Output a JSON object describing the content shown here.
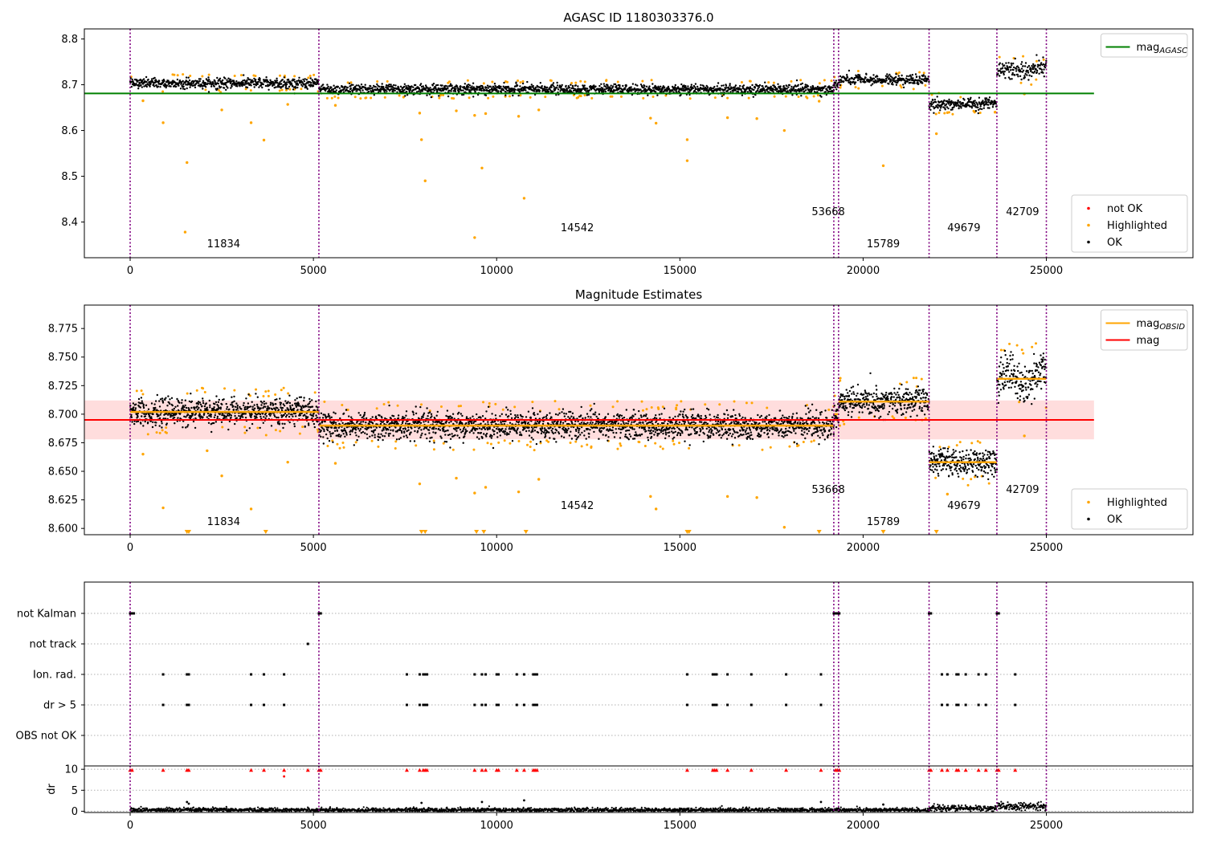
{
  "colors": {
    "ok": "#000000",
    "highlighted": "#ffa500",
    "not_ok": "#ff0000",
    "agasc_mag": "#008000",
    "mag": "#ff0000",
    "obsid_mag": "#ffa500",
    "band": "#ffdddd",
    "obs_boundary": "#800080",
    "grid": "#b0b0b0"
  },
  "chart_data": [
    {
      "type": "scatter",
      "title": "AGASC ID 1180303376.0",
      "xlim": [
        -1250,
        29000
      ],
      "ylim": [
        8.322,
        8.822
      ],
      "x_ticks": [
        0,
        5000,
        10000,
        15000,
        20000,
        25000
      ],
      "x_tick_labels": [
        "0",
        "5000",
        "10000",
        "15000",
        "20000",
        "25000"
      ],
      "y_ticks": [
        8.4,
        8.5,
        8.6,
        8.7,
        8.8
      ],
      "y_tick_labels": [
        "8.4",
        "8.5",
        "8.6",
        "8.7",
        "8.8"
      ],
      "grid": false,
      "obs_boundaries": [
        0,
        5150,
        19200,
        19330,
        21800,
        23650,
        25000
      ],
      "observations": [
        {
          "obsid": "11834",
          "x0": 0,
          "x1": 5150,
          "level": 8.703,
          "label_x": 2550,
          "label_y": 8.345
        },
        {
          "obsid": "14542",
          "x0": 5150,
          "x1": 19200,
          "level": 8.69,
          "label_x": 12200,
          "label_y": 8.38
        },
        {
          "obsid": "53668",
          "x0": 19200,
          "x1": 19330,
          "level": 8.7,
          "label_x": 19050,
          "label_y": 8.415
        },
        {
          "obsid": "15789",
          "x0": 19330,
          "x1": 21800,
          "level": 8.711,
          "label_x": 20550,
          "label_y": 8.345
        },
        {
          "obsid": "49679",
          "x0": 21800,
          "x1": 23650,
          "level": 8.658,
          "label_x": 22750,
          "label_y": 8.38
        },
        {
          "obsid": "42709",
          "x0": 23650,
          "x1": 25000,
          "level": 8.731,
          "label_x": 24350,
          "label_y": 8.415
        }
      ],
      "reference_lines": [
        {
          "name": "mag$_{AGASC}$",
          "y": 8.681,
          "x": [
            -1250,
            26300
          ]
        }
      ],
      "highlighted_outliers": [
        {
          "x": 350,
          "y": 8.665
        },
        {
          "x": 900,
          "y": 8.617
        },
        {
          "x": 1550,
          "y": 8.53
        },
        {
          "x": 1500,
          "y": 8.378
        },
        {
          "x": 2500,
          "y": 8.645
        },
        {
          "x": 3300,
          "y": 8.617
        },
        {
          "x": 3650,
          "y": 8.579
        },
        {
          "x": 4300,
          "y": 8.657
        },
        {
          "x": 5600,
          "y": 8.655
        },
        {
          "x": 7900,
          "y": 8.638
        },
        {
          "x": 7950,
          "y": 8.58
        },
        {
          "x": 8050,
          "y": 8.49
        },
        {
          "x": 8900,
          "y": 8.643
        },
        {
          "x": 9400,
          "y": 8.633
        },
        {
          "x": 9400,
          "y": 8.366
        },
        {
          "x": 9600,
          "y": 8.518
        },
        {
          "x": 9700,
          "y": 8.637
        },
        {
          "x": 10600,
          "y": 8.631
        },
        {
          "x": 10750,
          "y": 8.452
        },
        {
          "x": 11150,
          "y": 8.645
        },
        {
          "x": 14200,
          "y": 8.627
        },
        {
          "x": 14350,
          "y": 8.616
        },
        {
          "x": 15200,
          "y": 8.58
        },
        {
          "x": 15200,
          "y": 8.534
        },
        {
          "x": 16300,
          "y": 8.628
        },
        {
          "x": 17100,
          "y": 8.626
        },
        {
          "x": 17850,
          "y": 8.6
        },
        {
          "x": 18800,
          "y": 8.664
        },
        {
          "x": 20550,
          "y": 8.523
        },
        {
          "x": 22000,
          "y": 8.593
        },
        {
          "x": 22300,
          "y": 8.639
        },
        {
          "x": 23600,
          "y": 8.64
        },
        {
          "x": 24400,
          "y": 8.68
        }
      ],
      "legends": [
        {
          "location": "upper right",
          "entries": [
            {
              "kind": "line",
              "color": "#008000",
              "label": "mag",
              "sub": "AGASC"
            }
          ]
        },
        {
          "location": "lower right",
          "entries": [
            {
              "kind": "marker",
              "color": "#ff0000",
              "label": "not OK"
            },
            {
              "kind": "marker",
              "color": "#ffa500",
              "label": "Highlighted"
            },
            {
              "kind": "marker",
              "color": "#000000",
              "label": "OK"
            }
          ]
        }
      ]
    },
    {
      "type": "scatter",
      "title": "Magnitude Estimates",
      "xlim": [
        -1250,
        29000
      ],
      "ylim": [
        8.5945,
        8.7955
      ],
      "x_ticks": [
        0,
        5000,
        10000,
        15000,
        20000,
        25000
      ],
      "x_tick_labels": [
        "0",
        "5000",
        "10000",
        "15000",
        "20000",
        "25000"
      ],
      "y_ticks": [
        8.6,
        8.625,
        8.65,
        8.675,
        8.7,
        8.725,
        8.75,
        8.775
      ],
      "y_tick_labels": [
        "8.600",
        "8.625",
        "8.650",
        "8.675",
        "8.700",
        "8.725",
        "8.750",
        "8.775"
      ],
      "grid": false,
      "mag": 8.695,
      "mag_band": [
        8.678,
        8.712
      ],
      "observations": [
        {
          "obsid": "11834",
          "x0": 0,
          "x1": 5150,
          "level": 8.702,
          "label_x": 2550,
          "label_y": 8.603
        },
        {
          "obsid": "14542",
          "x0": 5150,
          "x1": 19200,
          "level": 8.69,
          "label_x": 12200,
          "label_y": 8.617
        },
        {
          "obsid": "53668",
          "x0": 19200,
          "x1": 19330,
          "level": 8.7,
          "label_x": 19050,
          "label_y": 8.631
        },
        {
          "obsid": "15789",
          "x0": 19330,
          "x1": 21800,
          "level": 8.711,
          "label_x": 20550,
          "label_y": 8.603
        },
        {
          "obsid": "49679",
          "x0": 21800,
          "x1": 23650,
          "level": 8.658,
          "label_x": 22750,
          "label_y": 8.617
        },
        {
          "obsid": "42709",
          "x0": 23650,
          "x1": 25000,
          "level": 8.731,
          "label_x": 24350,
          "label_y": 8.631
        }
      ],
      "highlighted_outliers": [
        {
          "x": 350,
          "y": 8.665
        },
        {
          "x": 900,
          "y": 8.618
        },
        {
          "x": 2100,
          "y": 8.668
        },
        {
          "x": 2500,
          "y": 8.646
        },
        {
          "x": 3300,
          "y": 8.617
        },
        {
          "x": 4300,
          "y": 8.658
        },
        {
          "x": 5600,
          "y": 8.657
        },
        {
          "x": 7900,
          "y": 8.639
        },
        {
          "x": 8900,
          "y": 8.644
        },
        {
          "x": 9400,
          "y": 8.631
        },
        {
          "x": 9700,
          "y": 8.636
        },
        {
          "x": 10600,
          "y": 8.632
        },
        {
          "x": 11150,
          "y": 8.643
        },
        {
          "x": 14200,
          "y": 8.628
        },
        {
          "x": 14350,
          "y": 8.617
        },
        {
          "x": 16300,
          "y": 8.628
        },
        {
          "x": 17100,
          "y": 8.627
        },
        {
          "x": 17850,
          "y": 8.601
        },
        {
          "x": 22300,
          "y": 8.63
        },
        {
          "x": 24400,
          "y": 8.681
        }
      ],
      "clipped_below_x": [
        1550,
        1600,
        3700,
        7950,
        8050,
        9450,
        9650,
        10800,
        15200,
        15250,
        18800,
        20550,
        22000
      ],
      "legends": [
        {
          "location": "upper right",
          "entries": [
            {
              "kind": "line",
              "color": "#ffa500",
              "label": "mag",
              "sub": "OBSID"
            },
            {
              "kind": "line",
              "color": "#ff0000",
              "label": "mag"
            }
          ]
        },
        {
          "location": "lower right",
          "entries": [
            {
              "kind": "marker",
              "color": "#ffa500",
              "label": "Highlighted"
            },
            {
              "kind": "marker",
              "color": "#000000",
              "label": "OK"
            }
          ]
        }
      ]
    },
    {
      "type": "scatter",
      "title": "",
      "xlim": [
        -1250,
        29000
      ],
      "x_ticks": [
        0,
        5000,
        10000,
        15000,
        20000,
        25000
      ],
      "x_tick_labels": [
        "0",
        "5000",
        "10000",
        "15000",
        "20000",
        "25000"
      ],
      "flag_rows": [
        "not Kalman",
        "not track",
        "Ion. rad.",
        "dr > 5",
        "OBS not OK"
      ],
      "flags": {
        "not Kalman": [
          0,
          50,
          100,
          5150,
          5200,
          19200,
          19250,
          19300,
          19350,
          21800,
          21850,
          23650,
          23700
        ],
        "not track": [
          4850
        ],
        "Ion. rad.": [
          900,
          1550,
          1600,
          3300,
          3650,
          4200,
          7550,
          7900,
          8000,
          8050,
          8100,
          9400,
          9600,
          9700,
          10000,
          10050,
          10550,
          10750,
          11000,
          11050,
          11100,
          15200,
          15900,
          15950,
          16000,
          16300,
          16950,
          17900,
          18850,
          22150,
          22300,
          22550,
          22600,
          22800,
          23150,
          23350,
          24150
        ],
        "dr > 5": [
          900,
          1550,
          1600,
          3300,
          3650,
          4200,
          7550,
          7900,
          8000,
          8050,
          8100,
          9400,
          9600,
          9700,
          10000,
          10050,
          10550,
          10750,
          11000,
          11050,
          11100,
          15200,
          15900,
          15950,
          16000,
          16300,
          16950,
          17900,
          18850,
          22150,
          22300,
          22550,
          22600,
          22800,
          23150,
          23350,
          24150
        ],
        "OBS not OK": []
      },
      "ylabel": "dr",
      "dr_ylim": [
        -0.3,
        10.8
      ],
      "dr_y_ticks": [
        0,
        5,
        10
      ],
      "dr_y_tick_labels": [
        "0",
        "5",
        "10"
      ],
      "dr_clipped_x": [
        0,
        50,
        900,
        1550,
        1600,
        3300,
        3650,
        4200,
        4850,
        5150,
        5200,
        7550,
        7900,
        8000,
        8050,
        8100,
        9400,
        9600,
        9700,
        10000,
        10050,
        10550,
        10750,
        11000,
        11050,
        11100,
        15200,
        15900,
        15950,
        16000,
        16300,
        16950,
        17900,
        18850,
        19250,
        19300,
        19350,
        21800,
        21850,
        22150,
        22300,
        22550,
        22600,
        22800,
        23150,
        23350,
        23650,
        23700,
        24150
      ],
      "dr_outliers": [
        {
          "x": 1550,
          "y": 2.2
        },
        {
          "x": 1600,
          "y": 1.8
        },
        {
          "x": 4200,
          "y": 8.3
        },
        {
          "x": 7950,
          "y": 2.0
        },
        {
          "x": 9600,
          "y": 2.2
        },
        {
          "x": 10750,
          "y": 2.6
        },
        {
          "x": 18850,
          "y": 2.2
        },
        {
          "x": 20550,
          "y": 1.6
        }
      ],
      "dr_levels": [
        {
          "x0": 0,
          "x1": 21800,
          "mean": 0.3,
          "spread": 0.25
        },
        {
          "x0": 21800,
          "x1": 23650,
          "mean": 0.7,
          "spread": 0.35
        },
        {
          "x0": 23650,
          "x1": 25000,
          "mean": 1.1,
          "spread": 0.45
        }
      ]
    }
  ]
}
